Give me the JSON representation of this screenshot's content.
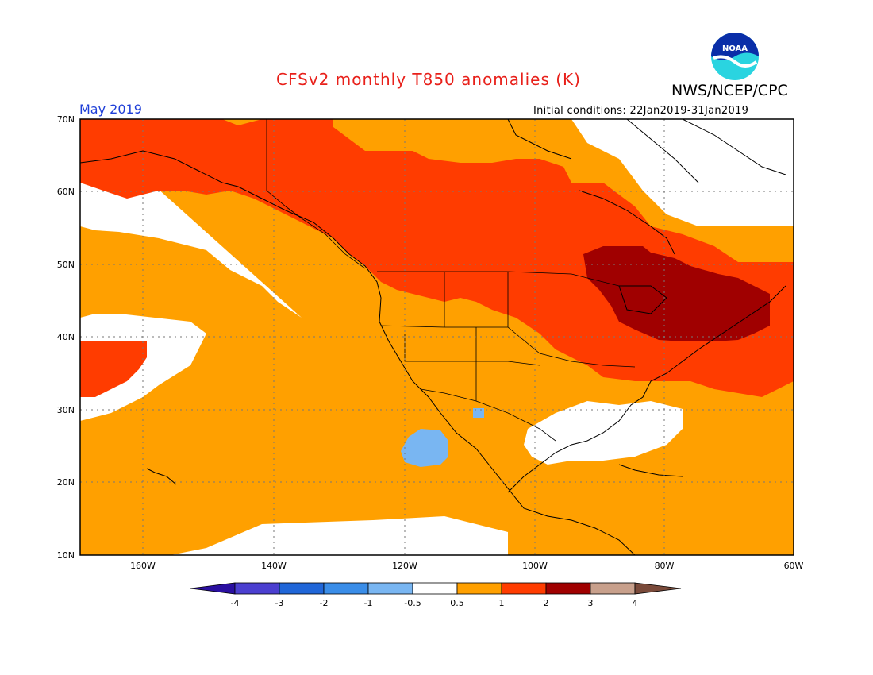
{
  "header": {
    "title": "CFSv2 monthly T850 anomalies (K)",
    "org": "NWS/NCEP/CPC",
    "month": "May 2019",
    "initial_conditions": "Initial conditions: 22Jan2019-31Jan2019",
    "logo_text": "NOAA"
  },
  "map": {
    "lat_labels": [
      "70N",
      "60N",
      "50N",
      "40N",
      "30N",
      "20N",
      "10N"
    ],
    "lon_labels": [
      "160W",
      "140W",
      "120W",
      "100W",
      "80W",
      "60W"
    ]
  },
  "legend": {
    "labels": [
      "-4",
      "-3",
      "-2",
      "-1",
      "-0.5",
      "0.5",
      "1",
      "2",
      "3",
      "4"
    ],
    "colors": [
      "#2a0fa0",
      "#4b3fd0",
      "#2066d8",
      "#3a8de8",
      "#79b6f2",
      "#ffffff",
      "#ffa000",
      "#ff3c00",
      "#a00000",
      "#c8a08c",
      "#7a4a3a"
    ]
  },
  "colors": {
    "title": "#e8201a",
    "month": "#1f3fd8",
    "anomaly_0_5_to_1": "#ffa000",
    "anomaly_1_to_2": "#ff3c00",
    "anomaly_2_to_3": "#a00000",
    "anomaly_neg_1_to_neg_0_5": "#79b6f2"
  }
}
